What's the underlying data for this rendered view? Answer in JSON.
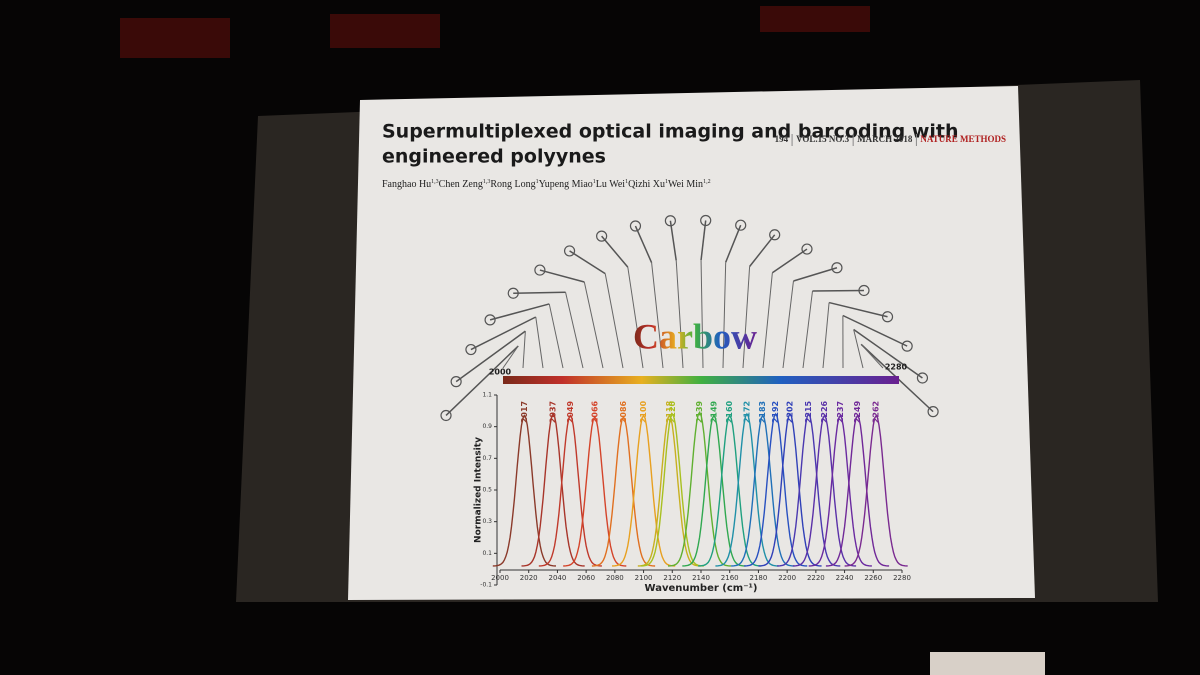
{
  "slide": {
    "title": [
      "Supermultiplexed optical imaging and barcoding with",
      "engineered polyynes"
    ],
    "journal": [
      "194",
      "VOL.15 NO.3",
      "MARCH 2018",
      "NATURE METHODS"
    ],
    "authors": [
      {
        "name": "Fanghao Hu",
        "aff": "1,3"
      },
      {
        "name": "Chen Zeng",
        "aff": "1,3"
      },
      {
        "name": "Rong Long",
        "aff": "1"
      },
      {
        "name": "Yupeng Miao",
        "aff": "1"
      },
      {
        "name": "Lu Wei",
        "aff": "1"
      },
      {
        "name": "Qizhi Xu",
        "aff": "1"
      },
      {
        "name": "Wei Min",
        "aff": "1,2"
      }
    ],
    "logo": "Carbow"
  },
  "chart_data": {
    "type": "line",
    "xlabel": "Wavenumber (cm⁻¹)",
    "ylabel": "Normalized Intensity",
    "colorbar": [
      2000,
      2280
    ],
    "peaks": [
      2017,
      2037,
      2049,
      2066,
      2086,
      2100,
      2118,
      2120,
      2139,
      2149,
      2160,
      2172,
      2183,
      2192,
      2202,
      2215,
      2226,
      2237,
      2249,
      2262
    ],
    "values": [
      0.97,
      0.98,
      0.97,
      0.96,
      0.96,
      0.97,
      0.97,
      0.98,
      0.99,
      0.97,
      0.97,
      0.98,
      0.97,
      0.98,
      0.98,
      0.98,
      0.97,
      0.97,
      0.97,
      0.97
    ],
    "colors": [
      "#8b3a2a",
      "#a8352a",
      "#c0392b",
      "#d4442a",
      "#e07020",
      "#e8a020",
      "#c8b020",
      "#a8c020",
      "#60b030",
      "#30a850",
      "#20a080",
      "#2090a8",
      "#2070b8",
      "#2850c0",
      "#3040b8",
      "#4a38b0",
      "#5a30a8",
      "#6a2aa0",
      "#702898",
      "#7a2a90"
    ],
    "xlim": [
      2000,
      2280
    ],
    "xticks": [
      2000,
      2020,
      2040,
      2060,
      2080,
      2100,
      2120,
      2140,
      2160,
      2180,
      2200,
      2220,
      2240,
      2260,
      2280
    ],
    "ylim": [
      -0.1,
      1.1
    ],
    "yticks": [
      -0.1,
      0.1,
      0.3,
      0.5,
      0.7,
      0.9,
      1.1
    ]
  }
}
